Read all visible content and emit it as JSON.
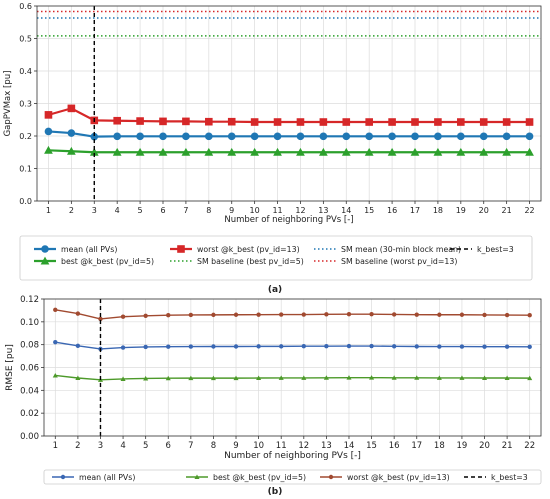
{
  "chart_data": [
    {
      "type": "line",
      "panel_label": "(a)",
      "xlabel": "Number of neighboring PVs [-]",
      "ylabel": "GapPVMax [pu]",
      "x": [
        1,
        2,
        3,
        4,
        5,
        6,
        7,
        8,
        9,
        10,
        11,
        12,
        13,
        14,
        15,
        16,
        17,
        18,
        19,
        20,
        21,
        22
      ],
      "xlim": [
        0.5,
        22.5
      ],
      "ylim": [
        0,
        0.6
      ],
      "yticks": [
        "0.0",
        "0.1",
        "0.2",
        "0.3",
        "0.4",
        "0.5",
        "0.6"
      ],
      "grid": true,
      "legend_position": "below-plot",
      "series": [
        {
          "name": "mean (all PVs)",
          "color": "#1f77b4",
          "marker": "circle",
          "values": [
            0.214,
            0.209,
            0.198,
            0.199,
            0.199,
            0.199,
            0.199,
            0.199,
            0.199,
            0.199,
            0.199,
            0.199,
            0.199,
            0.199,
            0.199,
            0.199,
            0.199,
            0.199,
            0.199,
            0.199,
            0.199,
            0.199
          ]
        },
        {
          "name": "best @k_best (pv_id=5)",
          "color": "#2ca02c",
          "marker": "triangle",
          "values": [
            0.156,
            0.153,
            0.15,
            0.15,
            0.15,
            0.15,
            0.15,
            0.15,
            0.15,
            0.15,
            0.15,
            0.15,
            0.15,
            0.15,
            0.15,
            0.15,
            0.15,
            0.15,
            0.15,
            0.15,
            0.15,
            0.15
          ]
        },
        {
          "name": "worst @k_best (pv_id=13)",
          "color": "#d62728",
          "marker": "square",
          "values": [
            0.265,
            0.285,
            0.248,
            0.247,
            0.246,
            0.245,
            0.245,
            0.244,
            0.244,
            0.243,
            0.243,
            0.243,
            0.243,
            0.243,
            0.243,
            0.243,
            0.243,
            0.243,
            0.243,
            0.243,
            0.243,
            0.243
          ]
        }
      ],
      "hlines": [
        {
          "name": "SM baseline (best pv_id=5)",
          "color": "#2ca02c",
          "value": 0.508
        },
        {
          "name": "SM mean (30-min block mean)",
          "color": "#1f77b4",
          "value": 0.563
        },
        {
          "name": "SM baseline (worst pv_id=13)",
          "color": "#d62728",
          "value": 0.583
        }
      ],
      "vline": {
        "name": "k_best=3",
        "value": 3,
        "color": "#000000"
      }
    },
    {
      "type": "line",
      "panel_label": "(b)",
      "xlabel": "Number of neighboring PVs [-]",
      "ylabel": "RMSE [pu]",
      "x": [
        1,
        2,
        3,
        4,
        5,
        6,
        7,
        8,
        9,
        10,
        11,
        12,
        13,
        14,
        15,
        16,
        17,
        18,
        19,
        20,
        21,
        22
      ],
      "xlim": [
        0.5,
        22.5
      ],
      "ylim": [
        0,
        0.12
      ],
      "yticks": [
        "0.00",
        "0.02",
        "0.04",
        "0.06",
        "0.08",
        "0.10",
        "0.12"
      ],
      "grid": true,
      "legend_position": "below-plot",
      "series": [
        {
          "name": "mean (all PVs)",
          "color": "#3a67b3",
          "marker": "circle",
          "values": [
            0.0822,
            0.079,
            0.0763,
            0.0775,
            0.078,
            0.0782,
            0.0783,
            0.0784,
            0.0784,
            0.0785,
            0.0785,
            0.0787,
            0.0787,
            0.0788,
            0.0788,
            0.0786,
            0.0784,
            0.0783,
            0.0783,
            0.0782,
            0.0782,
            0.0781
          ]
        },
        {
          "name": "best @k_best (pv_id=5)",
          "color": "#4d9a2a",
          "marker": "triangle",
          "values": [
            0.053,
            0.0508,
            0.0492,
            0.05,
            0.0504,
            0.0506,
            0.0507,
            0.0507,
            0.0507,
            0.0508,
            0.0509,
            0.0509,
            0.051,
            0.0511,
            0.0511,
            0.051,
            0.051,
            0.0509,
            0.0509,
            0.0508,
            0.0508,
            0.0507
          ]
        },
        {
          "name": "worst @k_best (pv_id=13)",
          "color": "#a14a30",
          "marker": "circle",
          "values": [
            0.1105,
            0.1072,
            0.1025,
            0.1045,
            0.1053,
            0.1058,
            0.106,
            0.1061,
            0.1062,
            0.1063,
            0.1064,
            0.1064,
            0.1066,
            0.1067,
            0.1067,
            0.1065,
            0.1063,
            0.1062,
            0.1062,
            0.106,
            0.1059,
            0.1058
          ]
        }
      ],
      "vline": {
        "name": "k_best=3",
        "value": 3,
        "color": "#000000"
      }
    }
  ]
}
